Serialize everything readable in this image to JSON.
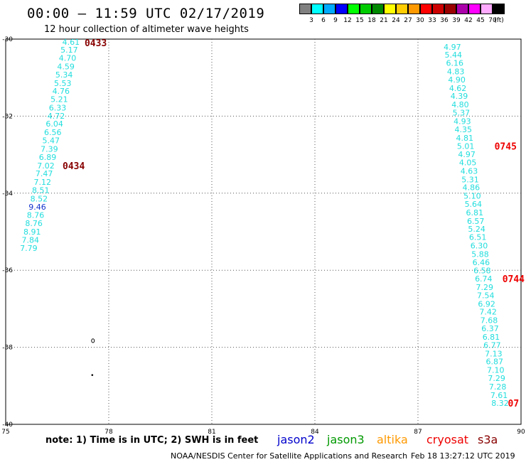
{
  "header": {
    "title": "00:00 – 11:59 UTC 02/17/2019",
    "subtitle": "12 hour collection of altimeter wave heights"
  },
  "legend": {
    "unit": "(ft)",
    "items": [
      {
        "label": "3",
        "color": "#808080"
      },
      {
        "label": "6",
        "color": "#00ffff"
      },
      {
        "label": "9",
        "color": "#00aaff"
      },
      {
        "label": "12",
        "color": "#0000ff"
      },
      {
        "label": "15",
        "color": "#00ff00"
      },
      {
        "label": "18",
        "color": "#00cc00"
      },
      {
        "label": "21",
        "color": "#008800"
      },
      {
        "label": "24",
        "color": "#ffff00"
      },
      {
        "label": "27",
        "color": "#ffcc00"
      },
      {
        "label": "30",
        "color": "#ff9900"
      },
      {
        "label": "33",
        "color": "#ff0000"
      },
      {
        "label": "36",
        "color": "#cc0000"
      },
      {
        "label": "39",
        "color": "#990000"
      },
      {
        "label": "42",
        "color": "#aa00aa"
      },
      {
        "label": "45",
        "color": "#ff00ff"
      },
      {
        "label": "70",
        "color": "#ffaaff"
      },
      {
        "label": "",
        "color": "#000000"
      }
    ]
  },
  "map": {
    "lon_range": [
      75,
      90
    ],
    "lat_range": [
      -40,
      -30
    ],
    "lon_ticks": [
      "75",
      "78",
      "81",
      "84",
      "87",
      "90"
    ],
    "lat_ticks": [
      "-30",
      "-32",
      "-34",
      "-36",
      "-38",
      "-40"
    ],
    "grid": "dotted"
  },
  "tracks": [
    {
      "name": "west",
      "points": [
        {
          "lon": 76.9,
          "lat": -30.07,
          "v": "4.61",
          "color": "#22dddd"
        },
        {
          "lon": 76.85,
          "lat": -30.28,
          "v": "5.17",
          "color": "#22dddd"
        },
        {
          "lon": 76.8,
          "lat": -30.49,
          "v": "4.70",
          "color": "#22dddd"
        },
        {
          "lon": 76.75,
          "lat": -30.71,
          "v": "4.59",
          "color": "#22dddd"
        },
        {
          "lon": 76.7,
          "lat": -30.92,
          "v": "5.34",
          "color": "#22dddd"
        },
        {
          "lon": 76.66,
          "lat": -31.14,
          "v": "5.53",
          "color": "#22dddd"
        },
        {
          "lon": 76.61,
          "lat": -31.35,
          "v": "4.76",
          "color": "#22dddd"
        },
        {
          "lon": 76.56,
          "lat": -31.56,
          "v": "5.21",
          "color": "#22dddd"
        },
        {
          "lon": 76.51,
          "lat": -31.78,
          "v": "6.33",
          "color": "#22dddd"
        },
        {
          "lon": 76.47,
          "lat": -31.99,
          "v": "4.72",
          "color": "#22dddd"
        },
        {
          "lon": 76.42,
          "lat": -32.2,
          "v": "6.04",
          "color": "#22dddd"
        },
        {
          "lon": 76.37,
          "lat": -32.42,
          "v": "6.56",
          "color": "#22dddd"
        },
        {
          "lon": 76.32,
          "lat": -32.63,
          "v": "5.47",
          "color": "#22dddd"
        },
        {
          "lon": 76.27,
          "lat": -32.85,
          "v": "7.39",
          "color": "#22dddd"
        },
        {
          "lon": 76.22,
          "lat": -33.06,
          "v": "6.89",
          "color": "#22dddd"
        },
        {
          "lon": 76.17,
          "lat": -33.28,
          "v": "7.02",
          "color": "#22dddd"
        },
        {
          "lon": 76.12,
          "lat": -33.49,
          "v": "7.47",
          "color": "#22dddd"
        },
        {
          "lon": 76.07,
          "lat": -33.71,
          "v": "7.12",
          "color": "#22dddd"
        },
        {
          "lon": 76.02,
          "lat": -33.92,
          "v": "8.51",
          "color": "#22dddd"
        },
        {
          "lon": 75.97,
          "lat": -34.14,
          "v": "8.52",
          "color": "#22dddd"
        },
        {
          "lon": 75.92,
          "lat": -34.35,
          "v": "9.46",
          "color": "#1133cc"
        },
        {
          "lon": 75.87,
          "lat": -34.57,
          "v": "8.76",
          "color": "#22dddd"
        },
        {
          "lon": 75.82,
          "lat": -34.78,
          "v": "8.76",
          "color": "#22dddd"
        },
        {
          "lon": 75.77,
          "lat": -35.0,
          "v": "8.91",
          "color": "#22dddd"
        },
        {
          "lon": 75.72,
          "lat": -35.21,
          "v": "7.84",
          "color": "#22dddd"
        },
        {
          "lon": 75.67,
          "lat": -35.42,
          "v": "7.79",
          "color": "#22dddd"
        }
      ],
      "times": [
        {
          "lon": 77.62,
          "lat": -30.09,
          "v": "0433",
          "color": "#880000"
        },
        {
          "lon": 76.98,
          "lat": -33.28,
          "v": "0434",
          "color": "#880000"
        }
      ]
    },
    {
      "name": "east",
      "points": [
        {
          "lon": 88.0,
          "lat": -30.2,
          "v": "4.97",
          "color": "#22dddd"
        },
        {
          "lon": 88.03,
          "lat": -30.41,
          "v": "5.44",
          "color": "#22dddd"
        },
        {
          "lon": 88.07,
          "lat": -30.62,
          "v": "6.16",
          "color": "#22dddd"
        },
        {
          "lon": 88.1,
          "lat": -30.84,
          "v": "4.83",
          "color": "#22dddd"
        },
        {
          "lon": 88.13,
          "lat": -31.05,
          "v": "4.90",
          "color": "#22dddd"
        },
        {
          "lon": 88.16,
          "lat": -31.27,
          "v": "4.62",
          "color": "#22dddd"
        },
        {
          "lon": 88.2,
          "lat": -31.48,
          "v": "4.39",
          "color": "#22dddd"
        },
        {
          "lon": 88.23,
          "lat": -31.7,
          "v": "4.80",
          "color": "#22dddd"
        },
        {
          "lon": 88.26,
          "lat": -31.91,
          "v": "5.37",
          "color": "#22dddd"
        },
        {
          "lon": 88.29,
          "lat": -32.13,
          "v": "4.93",
          "color": "#22dddd"
        },
        {
          "lon": 88.32,
          "lat": -32.34,
          "v": "4.35",
          "color": "#22dddd"
        },
        {
          "lon": 88.36,
          "lat": -32.56,
          "v": "4.81",
          "color": "#22dddd"
        },
        {
          "lon": 88.39,
          "lat": -32.78,
          "v": "5.01",
          "color": "#22dddd"
        },
        {
          "lon": 88.42,
          "lat": -32.99,
          "v": "4.97",
          "color": "#22dddd"
        },
        {
          "lon": 88.45,
          "lat": -33.2,
          "v": "4.05",
          "color": "#22dddd"
        },
        {
          "lon": 88.49,
          "lat": -33.42,
          "v": "4.63",
          "color": "#22dddd"
        },
        {
          "lon": 88.52,
          "lat": -33.64,
          "v": "5.31",
          "color": "#22dddd"
        },
        {
          "lon": 88.55,
          "lat": -33.85,
          "v": "4.86",
          "color": "#22dddd"
        },
        {
          "lon": 88.58,
          "lat": -34.07,
          "v": "5.10",
          "color": "#22dddd"
        },
        {
          "lon": 88.61,
          "lat": -34.28,
          "v": "5.64",
          "color": "#22dddd"
        },
        {
          "lon": 88.65,
          "lat": -34.5,
          "v": "6.81",
          "color": "#22dddd"
        },
        {
          "lon": 88.68,
          "lat": -34.72,
          "v": "6.57",
          "color": "#22dddd"
        },
        {
          "lon": 88.71,
          "lat": -34.93,
          "v": "5.24",
          "color": "#22dddd"
        },
        {
          "lon": 88.74,
          "lat": -35.14,
          "v": "6.51",
          "color": "#22dddd"
        },
        {
          "lon": 88.78,
          "lat": -35.36,
          "v": "6.30",
          "color": "#22dddd"
        },
        {
          "lon": 88.81,
          "lat": -35.58,
          "v": "5.88",
          "color": "#22dddd"
        },
        {
          "lon": 88.84,
          "lat": -35.79,
          "v": "6.46",
          "color": "#22dddd"
        },
        {
          "lon": 88.87,
          "lat": -36.01,
          "v": "6.58",
          "color": "#22dddd"
        },
        {
          "lon": 88.91,
          "lat": -36.22,
          "v": "6.74",
          "color": "#22dddd"
        },
        {
          "lon": 88.94,
          "lat": -36.44,
          "v": "7.29",
          "color": "#22dddd"
        },
        {
          "lon": 88.97,
          "lat": -36.65,
          "v": "7.54",
          "color": "#22dddd"
        },
        {
          "lon": 89.0,
          "lat": -36.87,
          "v": "6.92",
          "color": "#22dddd"
        },
        {
          "lon": 89.04,
          "lat": -37.08,
          "v": "7.42",
          "color": "#22dddd"
        },
        {
          "lon": 89.07,
          "lat": -37.3,
          "v": "7.68",
          "color": "#22dddd"
        },
        {
          "lon": 89.1,
          "lat": -37.51,
          "v": "6.37",
          "color": "#22dddd"
        },
        {
          "lon": 89.13,
          "lat": -37.73,
          "v": "6.81",
          "color": "#22dddd"
        },
        {
          "lon": 89.16,
          "lat": -37.94,
          "v": "6.77",
          "color": "#22dddd"
        },
        {
          "lon": 89.2,
          "lat": -38.16,
          "v": "7.13",
          "color": "#22dddd"
        },
        {
          "lon": 89.23,
          "lat": -38.37,
          "v": "6.87",
          "color": "#22dddd"
        },
        {
          "lon": 89.26,
          "lat": -38.59,
          "v": "7.10",
          "color": "#22dddd"
        },
        {
          "lon": 89.29,
          "lat": -38.8,
          "v": "7.29",
          "color": "#22dddd"
        },
        {
          "lon": 89.32,
          "lat": -39.02,
          "v": "7.28",
          "color": "#22dddd"
        },
        {
          "lon": 89.36,
          "lat": -39.24,
          "v": "7.61",
          "color": "#22dddd"
        },
        {
          "lon": 89.39,
          "lat": -39.45,
          "v": "8.32",
          "color": "#22dddd"
        }
      ],
      "times": [
        {
          "lon": 89.55,
          "lat": -32.78,
          "v": "0745",
          "color": "#ee0000"
        },
        {
          "lon": 89.78,
          "lat": -36.22,
          "v": "0744",
          "color": "#ee0000"
        },
        {
          "lon": 89.78,
          "lat": -39.45,
          "v": "07",
          "color": "#ee0000"
        }
      ]
    }
  ],
  "islands": [
    {
      "lon": 77.54,
      "lat": -37.83
    },
    {
      "lon": 77.52,
      "lat": -38.72
    }
  ],
  "footer": {
    "note": "note: 1) Time is in UTC; 2) SWH is in feet",
    "satellites": [
      {
        "label": "jason2",
        "color": "#0000cc"
      },
      {
        "label": "jason3",
        "color": "#009900"
      },
      {
        "label": "altika",
        "color": "#ff9900"
      },
      {
        "label": "cryosat",
        "color": "#ee0000"
      },
      {
        "label": "s3a",
        "color": "#880000"
      }
    ],
    "credit": "NOAA/NESDIS Center for Satellite Applications and Research",
    "timestamp": "Feb 18 13:27:12 UTC 2019"
  }
}
